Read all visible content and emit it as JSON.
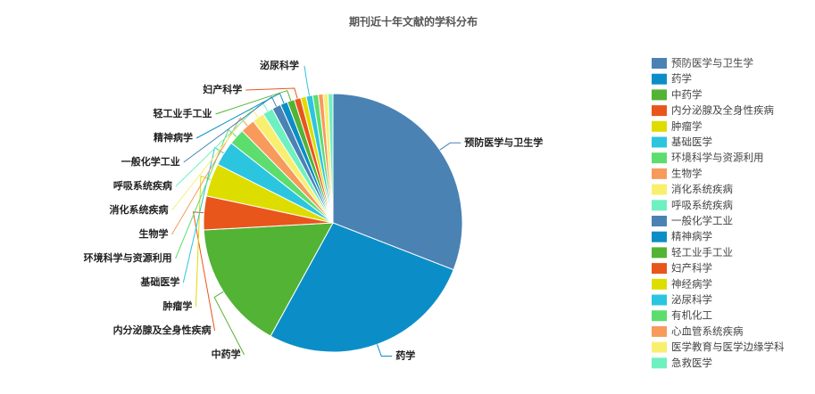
{
  "chart_data": {
    "type": "pie",
    "title": "期刊近十年文献的学科分布",
    "categories": [
      "预防医学与卫生学",
      "药学",
      "中药学",
      "内分泌腺及全身性疾病",
      "肿瘤学",
      "基础医学",
      "环境科学与资源利用",
      "生物学",
      "消化系统疾病",
      "呼吸系统疾病",
      "一般化学工业",
      "精神病学",
      "轻工业手工业",
      "妇产科学",
      "神经病学",
      "泌尿科学",
      "有机化工",
      "心血管系统疾病",
      "医学教育与医学边缘学科",
      "急救医学"
    ],
    "values": [
      30.7,
      26.9,
      16,
      4.2,
      4.1,
      3.1,
      2,
      1.8,
      1.5,
      1.3,
      1.1,
      0.9,
      0.9,
      0.8,
      0.7,
      0.8,
      0.7,
      0.6,
      0.6,
      0.6
    ],
    "colors": [
      "#4a82b4",
      "#0b8ec8",
      "#52b334",
      "#e8561c",
      "#dddd00",
      "#2bc5e0",
      "#5ddd6e",
      "#f79a5c",
      "#f9ef6f",
      "#6ff0c0",
      "#4a82b4",
      "#0b8ec8",
      "#52b334",
      "#e8561c",
      "#dddd00",
      "#2bc5e0",
      "#5ddd6e",
      "#f79a5c",
      "#f9ef6f",
      "#6ff0c0"
    ],
    "legend": "right"
  }
}
